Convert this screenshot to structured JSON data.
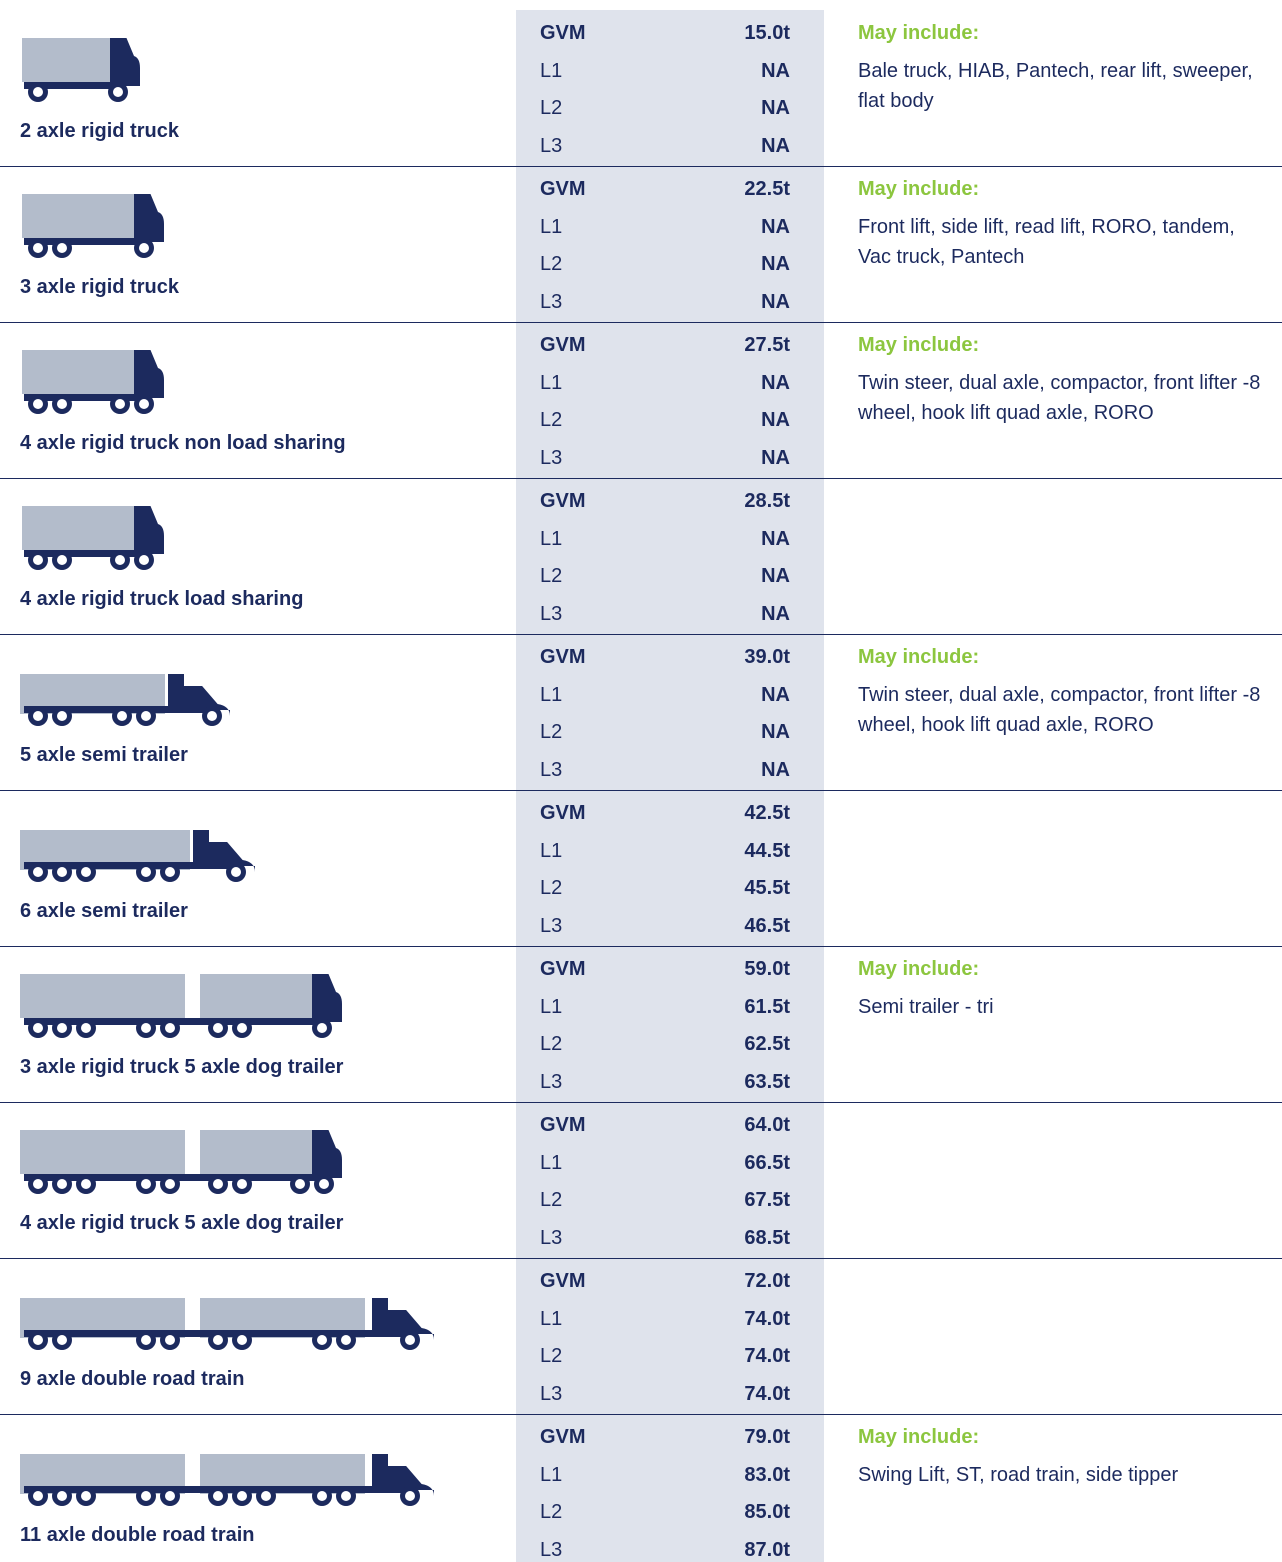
{
  "rows": [
    {
      "vehicle": "2 axle rigid truck",
      "specs": [
        {
          "label": "GVM",
          "value": "15.0t"
        },
        {
          "label": "L1",
          "value": "NA"
        },
        {
          "label": "L2",
          "value": "NA"
        },
        {
          "label": "L3",
          "value": "NA"
        }
      ],
      "includes_heading": "May include:",
      "includes": "Bale truck, HIAB, Pantech, rear lift, sweeper, flat body"
    },
    {
      "vehicle": "3 axle rigid truck",
      "specs": [
        {
          "label": "GVM",
          "value": "22.5t"
        },
        {
          "label": "L1",
          "value": "NA"
        },
        {
          "label": "L2",
          "value": "NA"
        },
        {
          "label": "L3",
          "value": "NA"
        }
      ],
      "includes_heading": "May include:",
      "includes": "Front lift, side lift, read lift, RORO, tandem, Vac truck, Pantech"
    },
    {
      "vehicle": "4 axle rigid truck non load sharing",
      "specs": [
        {
          "label": "GVM",
          "value": "27.5t"
        },
        {
          "label": "L1",
          "value": "NA"
        },
        {
          "label": "L2",
          "value": "NA"
        },
        {
          "label": "L3",
          "value": "NA"
        }
      ],
      "includes_heading": "May include:",
      "includes": "Twin steer, dual axle, compactor, front lifter -8 wheel, hook lift quad axle, RORO"
    },
    {
      "vehicle": "4 axle rigid truck load sharing",
      "specs": [
        {
          "label": "GVM",
          "value": "28.5t"
        },
        {
          "label": "L1",
          "value": "NA"
        },
        {
          "label": "L2",
          "value": "NA"
        },
        {
          "label": "L3",
          "value": "NA"
        }
      ]
    },
    {
      "vehicle": "5 axle semi trailer",
      "specs": [
        {
          "label": "GVM",
          "value": "39.0t"
        },
        {
          "label": "L1",
          "value": "NA"
        },
        {
          "label": "L2",
          "value": "NA"
        },
        {
          "label": "L3",
          "value": "NA"
        }
      ],
      "includes_heading": "May include:",
      "includes": "Twin steer, dual axle, compactor, front lifter -8 wheel, hook lift quad axle, RORO"
    },
    {
      "vehicle": "6 axle semi trailer",
      "specs": [
        {
          "label": "GVM",
          "value": "42.5t"
        },
        {
          "label": "L1",
          "value": "44.5t"
        },
        {
          "label": "L2",
          "value": "45.5t"
        },
        {
          "label": "L3",
          "value": "46.5t"
        }
      ]
    },
    {
      "vehicle": "3 axle rigid truck 5 axle dog trailer",
      "specs": [
        {
          "label": "GVM",
          "value": "59.0t"
        },
        {
          "label": "L1",
          "value": "61.5t"
        },
        {
          "label": "L2",
          "value": "62.5t"
        },
        {
          "label": "L3",
          "value": "63.5t"
        }
      ],
      "includes_heading": "May include:",
      "includes": "Semi trailer - tri"
    },
    {
      "vehicle": "4 axle rigid truck 5 axle dog trailer",
      "specs": [
        {
          "label": "GVM",
          "value": "64.0t"
        },
        {
          "label": "L1",
          "value": "66.5t"
        },
        {
          "label": "L2",
          "value": "67.5t"
        },
        {
          "label": "L3",
          "value": "68.5t"
        }
      ]
    },
    {
      "vehicle": "9 axle double road train",
      "specs": [
        {
          "label": "GVM",
          "value": "72.0t"
        },
        {
          "label": "L1",
          "value": "74.0t"
        },
        {
          "label": "L2",
          "value": "74.0t"
        },
        {
          "label": "L3",
          "value": "74.0t"
        }
      ]
    },
    {
      "vehicle": "11 axle double road train",
      "specs": [
        {
          "label": "GVM",
          "value": "79.0t"
        },
        {
          "label": "L1",
          "value": "83.0t"
        },
        {
          "label": "L2",
          "value": "85.0t"
        },
        {
          "label": "L3",
          "value": "87.0t"
        }
      ],
      "includes_heading": "May include:",
      "includes": "Swing Lift, ST, road train, side tipper"
    }
  ]
}
